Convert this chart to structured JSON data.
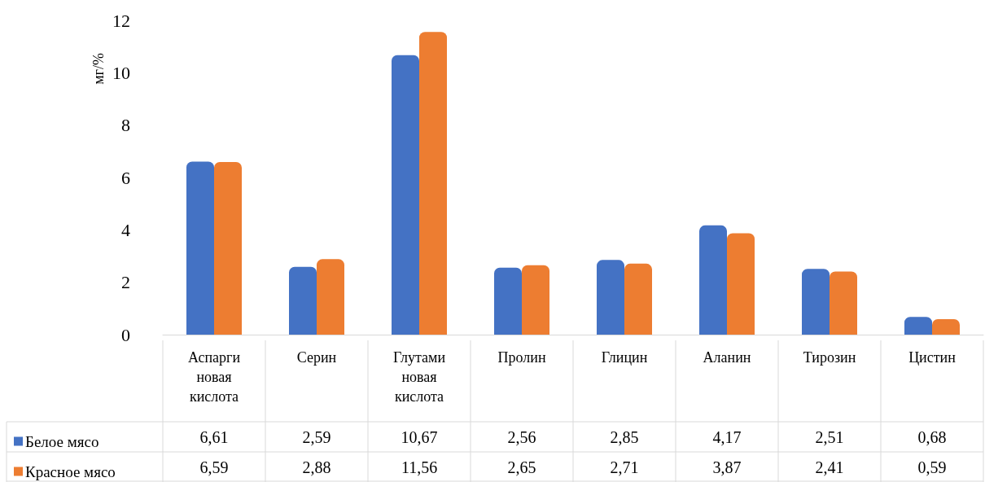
{
  "chart_data": {
    "type": "bar",
    "ylabel": "мг/%",
    "categories": [
      "Аспарги новая кислота",
      "Серин",
      "Глутами новая кислота",
      "Пролин",
      "Глицин",
      "Аланин",
      "Тирозин",
      "Цистин"
    ],
    "series": [
      {
        "name": "Белое мясо",
        "color": "#4472c4",
        "values": [
          6.61,
          2.59,
          10.67,
          2.56,
          2.85,
          4.17,
          2.51,
          0.68
        ],
        "value_labels": [
          "6,61",
          "2,59",
          "10,67",
          "2,56",
          "2,85",
          "4,17",
          "2,51",
          "0,68"
        ]
      },
      {
        "name": "Красное мясо",
        "color": "#ed7d31",
        "values": [
          6.59,
          2.88,
          11.56,
          2.65,
          2.71,
          3.87,
          2.41,
          0.59
        ],
        "value_labels": [
          "6,59",
          "2,88",
          "11,56",
          "2,65",
          "2,71",
          "3,87",
          "2,41",
          "0,59"
        ]
      }
    ],
    "ylim": [
      0,
      12
    ],
    "yticks": [
      0,
      2,
      4,
      6,
      8,
      10,
      12
    ],
    "grid": false,
    "legend": "bottom left"
  }
}
